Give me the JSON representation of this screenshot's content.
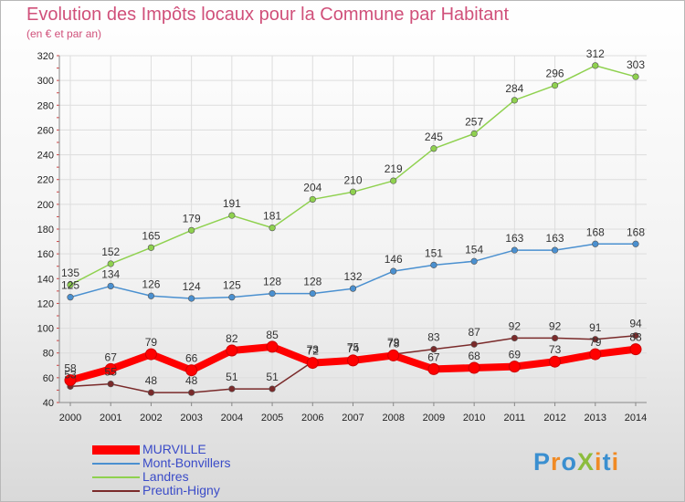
{
  "title": "Evolution des Impôts locaux pour la Commune par Habitant",
  "subtitle": "(en € et par an)",
  "brand": "ProXiti",
  "chart_data": {
    "type": "line",
    "title": "Evolution des Impôts locaux pour la Commune par Habitant",
    "subtitle": "(en € et par an)",
    "x": [
      "2000",
      "2001",
      "2002",
      "2003",
      "2004",
      "2005",
      "2006",
      "2007",
      "2008",
      "2009",
      "2010",
      "2011",
      "2012",
      "2013",
      "2014"
    ],
    "ylim": [
      40,
      320
    ],
    "yticks": [
      40,
      60,
      80,
      100,
      120,
      140,
      160,
      180,
      200,
      220,
      240,
      260,
      280,
      300,
      320
    ],
    "grid": true,
    "legend_position": "bottom-left",
    "series": [
      {
        "name": "MURVILLE",
        "color": "#ff0000",
        "values": [
          58,
          67,
          79,
          66,
          82,
          85,
          72,
          74,
          78,
          67,
          68,
          69,
          73,
          79,
          83
        ],
        "labels": [
          "58",
          "67",
          "79",
          "66",
          "82",
          "85",
          "72",
          "74",
          "78",
          "67",
          "68",
          "69",
          "73",
          "79",
          "83"
        ]
      },
      {
        "name": "Mont-Bonvillers",
        "color": "#4a90d0",
        "values": [
          125,
          134,
          126,
          124,
          125,
          128,
          128,
          132,
          146,
          151,
          154,
          163,
          163,
          168,
          168
        ],
        "labels": [
          "125",
          "134",
          "126",
          "124",
          "125",
          "128",
          "128",
          "132",
          "146",
          "151",
          "154",
          "163",
          "163",
          "168",
          "168"
        ]
      },
      {
        "name": "Landres",
        "color": "#8fd14f",
        "values": [
          135,
          152,
          165,
          179,
          191,
          181,
          204,
          210,
          219,
          245,
          257,
          284,
          296,
          312,
          303
        ],
        "labels": [
          "135",
          "152",
          "165",
          "179",
          "191",
          "181",
          "204",
          "210",
          "219",
          "245",
          "257",
          "284",
          "296",
          "312",
          "303"
        ]
      },
      {
        "name": "Preutin-Higny",
        "color": "#7a2a2a",
        "values": [
          53,
          55,
          48,
          48,
          51,
          51,
          73,
          75,
          79,
          83,
          87,
          92,
          92,
          91,
          94
        ],
        "labels": [
          "53",
          "55",
          "48",
          "48",
          "51",
          "51",
          "73",
          "75",
          "79",
          "83",
          "87",
          "92",
          "92",
          "91",
          "94"
        ]
      }
    ]
  }
}
